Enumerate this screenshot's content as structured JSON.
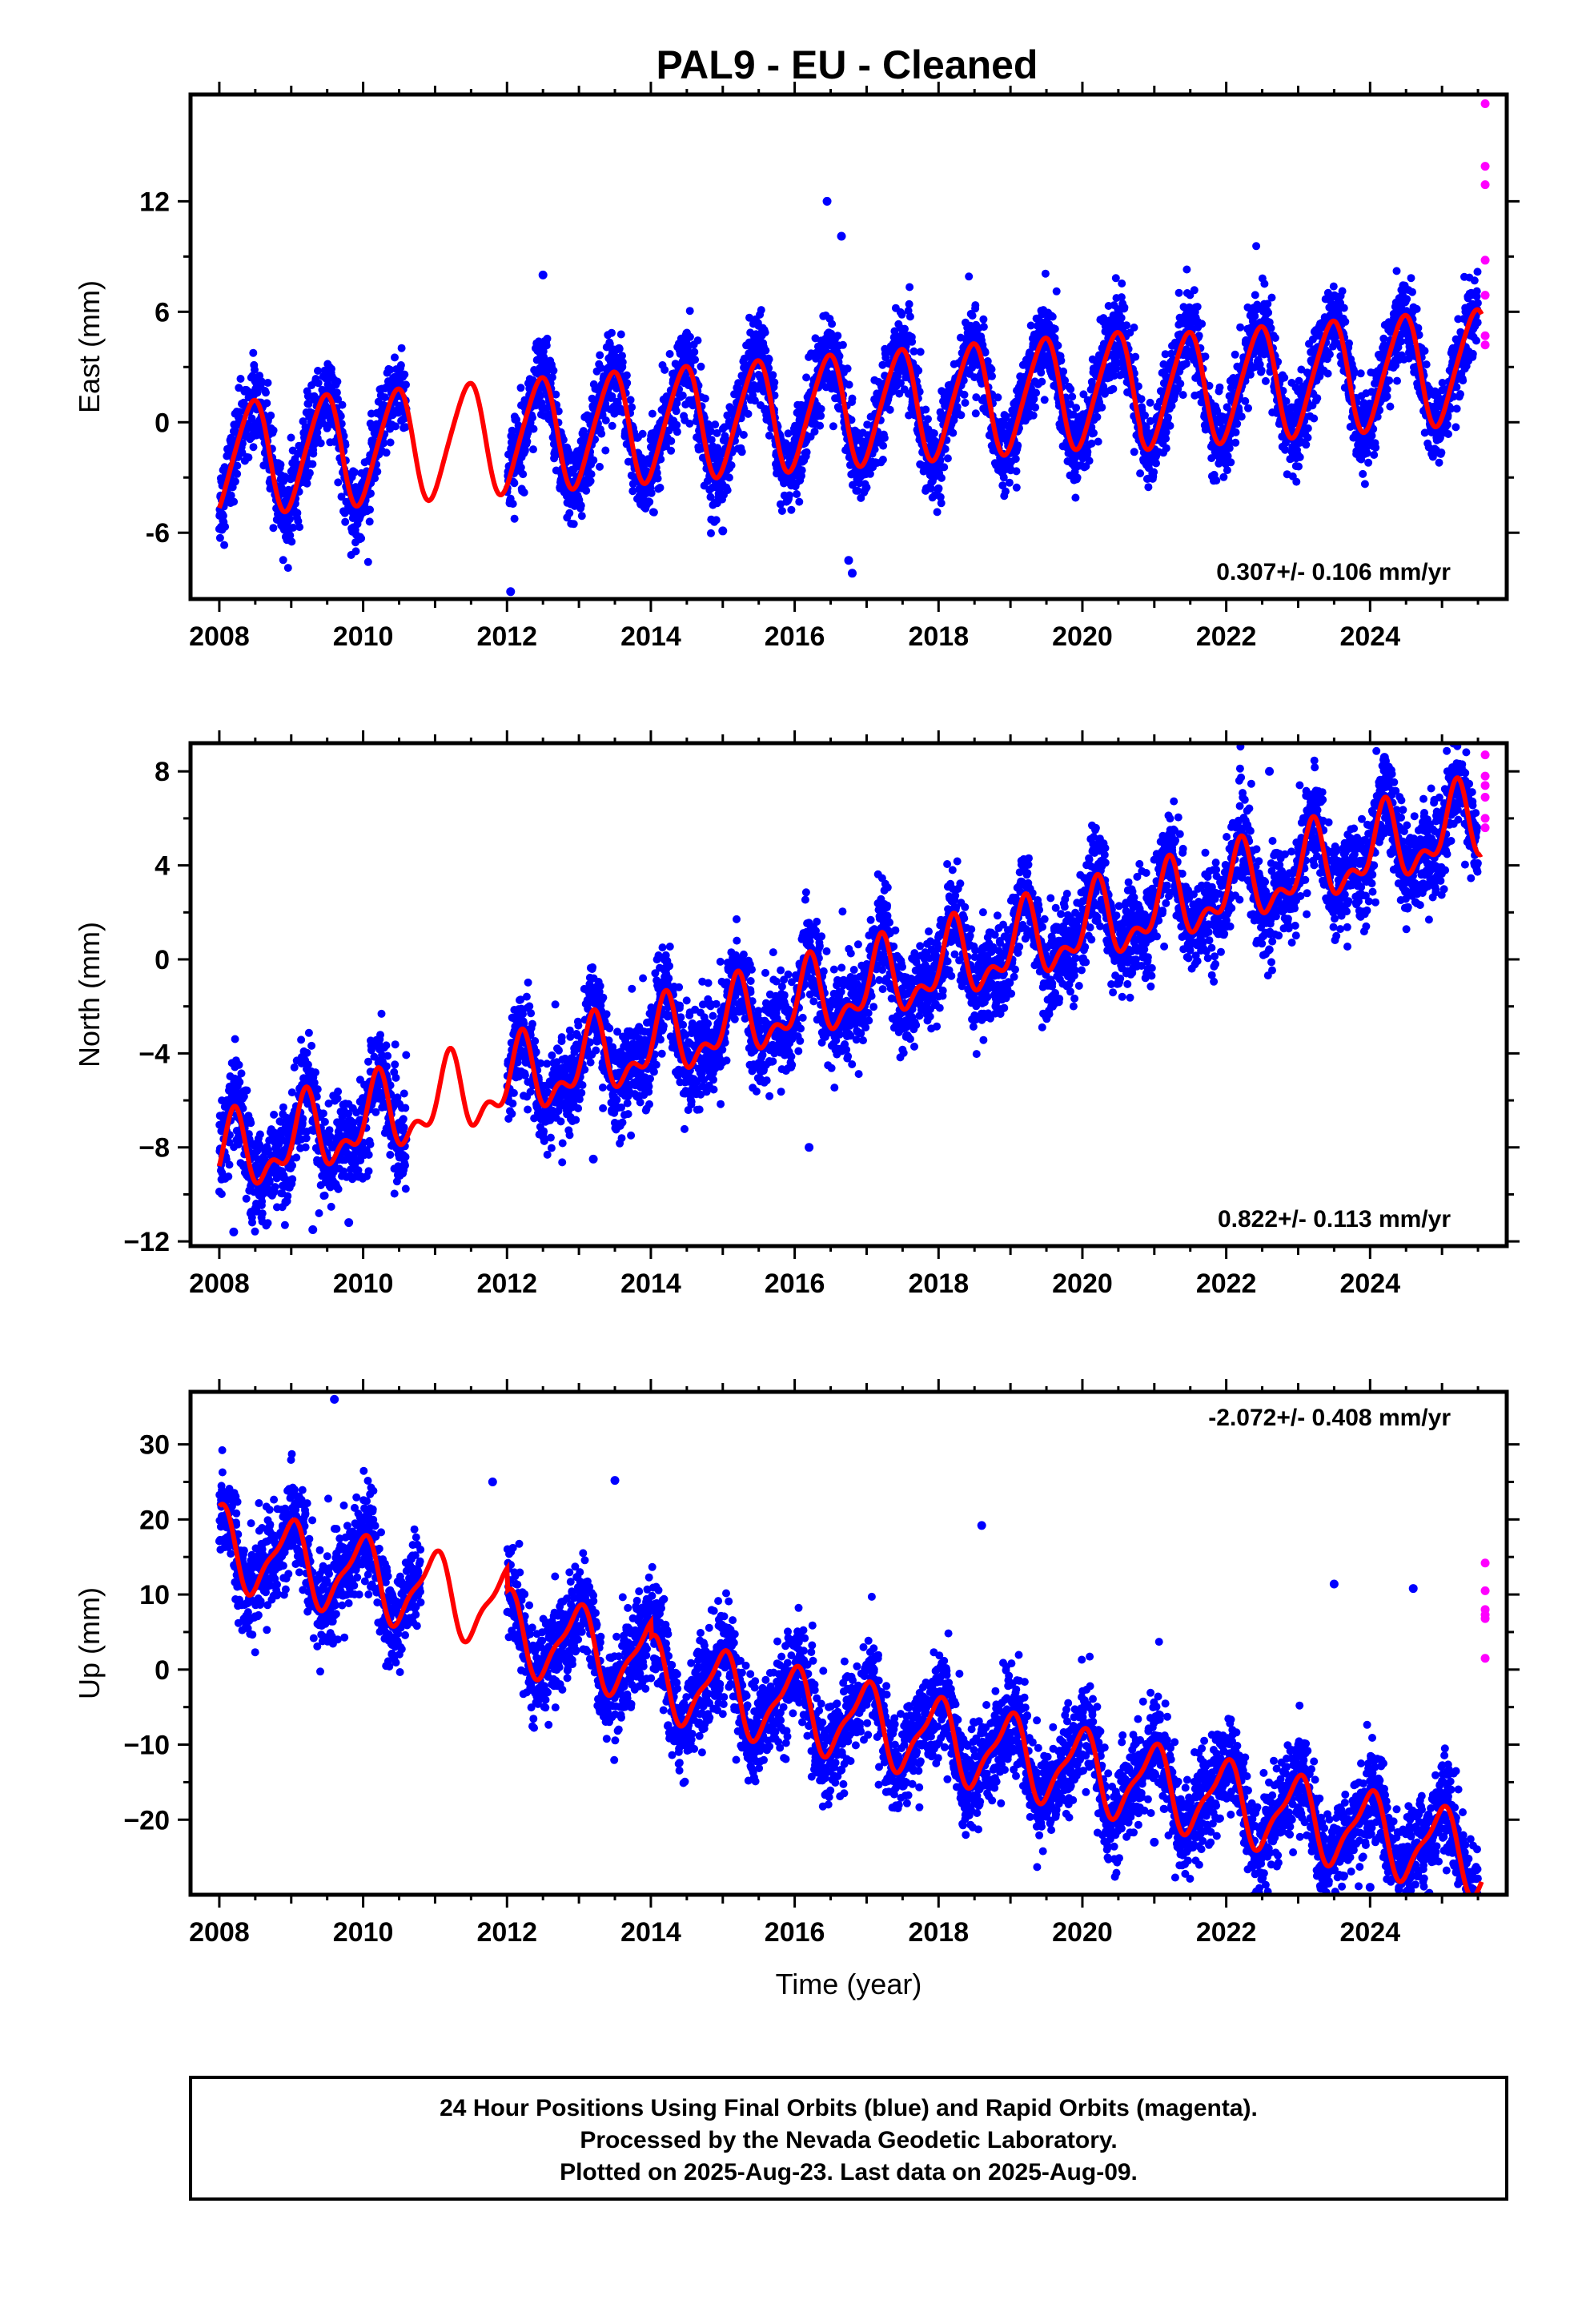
{
  "title": "PAL9  - EU - Cleaned",
  "colors": {
    "final": "#0000ff",
    "rapid": "#ff00ff",
    "model": "#ff0000",
    "frame": "#000000"
  },
  "chart_data": [
    {
      "type": "scatter",
      "panel": "east",
      "ylabel": "East (mm)",
      "xlabel": "",
      "xlim": [
        2007.6,
        2025.9
      ],
      "ylim": [
        -9.6,
        17.8
      ],
      "xticks": [
        2008,
        2010,
        2012,
        2014,
        2016,
        2018,
        2020,
        2022,
        2024
      ],
      "yticks": [
        -6,
        0,
        6,
        12
      ],
      "ytick_labels": [
        "-6",
        "0",
        "6",
        "12"
      ],
      "rate_text": "0.307+/- 0.106 mm/yr",
      "rate_position": "bottom-right",
      "data_gap": [
        2010.6,
        2012.0
      ],
      "final_range": [
        2008.0,
        2025.5
      ],
      "model": {
        "base": -2.0,
        "slope": 0.307,
        "steps": [
          [
            2020.8,
            -0.3
          ]
        ],
        "annual_amp": 3.0,
        "annual_phase": -1.25,
        "semi_amp": 0.4,
        "semi_phase": 0.5
      },
      "noise": 1.1,
      "outliers": [
        [
          2016.45,
          12.0
        ],
        [
          2016.65,
          10.1
        ],
        [
          2016.75,
          -7.5
        ],
        [
          2016.8,
          -8.2
        ],
        [
          2012.05,
          -9.2
        ],
        [
          2012.5,
          8.0
        ],
        [
          2015.0,
          -5.9
        ]
      ],
      "rapid": [
        [
          2025.6,
          17.3
        ],
        [
          2025.6,
          13.9
        ],
        [
          2025.6,
          12.9
        ],
        [
          2025.6,
          8.8
        ],
        [
          2025.6,
          6.9
        ],
        [
          2025.6,
          4.7
        ],
        [
          2025.6,
          4.2
        ]
      ]
    },
    {
      "type": "scatter",
      "panel": "north",
      "ylabel": "North (mm)",
      "xlabel": "",
      "xlim": [
        2007.6,
        2025.9
      ],
      "ylim": [
        -12.2,
        9.2
      ],
      "xticks": [
        2008,
        2010,
        2012,
        2014,
        2016,
        2018,
        2020,
        2022,
        2024
      ],
      "yticks": [
        -12,
        -8,
        -4,
        0,
        4,
        8
      ],
      "ytick_labels": [
        "−12",
        "−8",
        "−4",
        "0",
        "4",
        "8"
      ],
      "rate_text": "0.822+/- 0.113 mm/yr",
      "rate_position": "bottom-right",
      "data_gap": [
        2010.6,
        2012.0
      ],
      "final_range": [
        2008.0,
        2025.5
      ],
      "model": {
        "base": -8.6,
        "slope": 0.822,
        "steps": [],
        "annual_amp": 1.4,
        "annual_phase": 0.4,
        "semi_amp": 0.8,
        "semi_phase": -1.2
      },
      "noise": 1.0,
      "outliers": [
        [
          2008.2,
          -11.6
        ],
        [
          2009.3,
          -11.5
        ],
        [
          2009.8,
          -11.2
        ],
        [
          2016.2,
          -8.0
        ],
        [
          2013.2,
          -8.5
        ],
        [
          2022.6,
          8.0
        ],
        [
          2024.2,
          8.6
        ]
      ],
      "rapid": [
        [
          2025.6,
          8.7
        ],
        [
          2025.6,
          7.8
        ],
        [
          2025.6,
          7.4
        ],
        [
          2025.6,
          6.9
        ],
        [
          2025.6,
          6.0
        ],
        [
          2025.6,
          5.6
        ]
      ]
    },
    {
      "type": "scatter",
      "panel": "up",
      "ylabel": "Up (mm)",
      "xlabel": "Time (year)",
      "xlim": [
        2007.6,
        2025.9
      ],
      "ylim": [
        -30,
        37
      ],
      "xticks": [
        2008,
        2010,
        2012,
        2014,
        2016,
        2018,
        2020,
        2022,
        2024
      ],
      "yticks": [
        -20,
        -10,
        0,
        10,
        20,
        30
      ],
      "ytick_labels": [
        "−20",
        "−10",
        "0",
        "10",
        "20",
        "30"
      ],
      "rate_text": "-2.072+/- 0.408 mm/yr",
      "rate_position": "top-right",
      "data_gap": [
        2010.8,
        2012.0
      ],
      "final_range": [
        2008.0,
        2025.5
      ],
      "model": {
        "base": 16.5,
        "slope": -2.072,
        "steps": [
          [
            2012.0,
            -3.0
          ],
          [
            2014.0,
            -2.0
          ]
        ],
        "annual_amp": 5.0,
        "annual_phase": 1.7,
        "semi_amp": 1.5,
        "semi_phase": 0.2
      },
      "noise": 3.2,
      "outliers": [
        [
          2009.6,
          36.0
        ],
        [
          2011.8,
          25.0
        ],
        [
          2013.5,
          25.2
        ],
        [
          2018.6,
          19.2
        ],
        [
          2023.5,
          11.4
        ],
        [
          2024.6,
          10.8
        ],
        [
          2024.0,
          -29.0
        ],
        [
          2025.2,
          -27.0
        ],
        [
          2021.0,
          -23.0
        ]
      ],
      "rapid": [
        [
          2025.6,
          14.2
        ],
        [
          2025.6,
          10.5
        ],
        [
          2025.6,
          8.0
        ],
        [
          2025.6,
          7.3
        ],
        [
          2025.6,
          6.8
        ],
        [
          2025.6,
          1.5
        ]
      ]
    }
  ],
  "footer": {
    "lines": [
      "24 Hour Positions Using Final Orbits (blue) and Rapid Orbits (magenta).",
      "Processed by the Nevada Geodetic Laboratory.",
      "Plotted on 2025-Aug-23. Last data on 2025-Aug-09."
    ]
  }
}
